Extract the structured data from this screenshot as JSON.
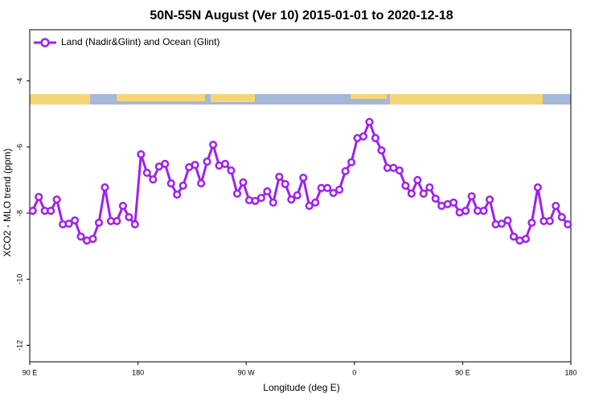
{
  "chart_data": {
    "type": "line",
    "title": "50N-55N August (Ver 10)   2015-01-01 to 2020-12-18",
    "x_label": "Longitude (deg E)",
    "y_label": "XCO2 - MLO trend (ppm)",
    "legend": "top-left",
    "xlim": [
      90,
      540
    ],
    "xticks": [
      {
        "value": 90,
        "label": "90 E"
      },
      {
        "value": 180,
        "label": "180"
      },
      {
        "value": 270,
        "label": "90 W"
      },
      {
        "value": 360,
        "label": "0"
      },
      {
        "value": 450,
        "label": "90 E"
      },
      {
        "value": 540,
        "label": "180"
      }
    ],
    "ylim": [
      -12.5,
      -2.45
    ],
    "yticks": [
      -4,
      -6,
      -8,
      -10,
      -12
    ],
    "x": [
      92.5,
      97.5,
      102.5,
      107.5,
      112.5,
      117.5,
      122.5,
      127.5,
      132.5,
      137.5,
      142.5,
      147.5,
      152.5,
      157.5,
      162.5,
      167.5,
      172.5,
      177.5,
      182.5,
      187.5,
      192.5,
      197.5,
      202.5,
      207.5,
      212.5,
      217.5,
      222.5,
      227.5,
      232.5,
      237.5,
      242.5,
      247.5,
      252.5,
      257.5,
      262.5,
      267.5,
      272.5,
      277.5,
      282.5,
      287.5,
      292.5,
      297.5,
      302.5,
      307.5,
      312.5,
      317.5,
      322.5,
      327.5,
      332.5,
      337.5,
      342.5,
      347.5,
      352.5,
      357.5,
      362.5,
      367.5,
      372.5,
      377.5,
      382.5,
      387.5,
      392.5,
      397.5,
      402.5,
      407.5,
      412.5,
      417.5,
      422.5,
      427.5,
      432.5,
      437.5,
      442.5,
      447.5,
      452.5,
      457.5,
      462.5,
      467.5,
      472.5,
      477.5,
      482.5,
      487.5,
      492.5,
      497.5,
      502.5,
      507.5,
      512.5,
      517.5,
      522.5,
      527.5,
      532.5,
      537.5
    ],
    "series": [
      {
        "name": "Land (Nadir&Glint) and Ocean (Glint)",
        "color": "#a020f0",
        "values": [
          -7.93,
          -7.51,
          -7.93,
          -7.93,
          -7.59,
          -8.34,
          -8.32,
          -8.22,
          -8.71,
          -8.83,
          -8.78,
          -8.29,
          -7.22,
          -8.24,
          -8.24,
          -7.78,
          -8.12,
          -8.34,
          -6.22,
          -6.78,
          -6.98,
          -6.59,
          -6.51,
          -7.1,
          -7.44,
          -7.17,
          -6.61,
          -6.54,
          -7.1,
          -6.44,
          -5.93,
          -6.56,
          -6.51,
          -6.71,
          -7.41,
          -7.07,
          -7.61,
          -7.63,
          -7.54,
          -7.34,
          -7.68,
          -6.9,
          -7.12,
          -7.59,
          -7.46,
          -6.93,
          -7.78,
          -7.68,
          -7.24,
          -7.24,
          -7.39,
          -7.29,
          -6.73,
          -6.46,
          -5.73,
          -5.68,
          -5.24,
          -5.73,
          -6.1,
          -6.63,
          -6.63,
          -6.71,
          -7.17,
          -7.41,
          -7.0,
          -7.41,
          -7.22,
          -7.56,
          -7.78,
          -7.73,
          -7.68,
          -7.98,
          -7.93,
          -7.49,
          -7.93,
          -7.93,
          -7.59,
          -8.34,
          -8.32,
          -8.22,
          -8.71,
          -8.83,
          -8.78,
          -8.29,
          -7.22,
          -8.24,
          -8.24,
          -7.78,
          -8.12,
          -8.34
        ]
      }
    ]
  }
}
